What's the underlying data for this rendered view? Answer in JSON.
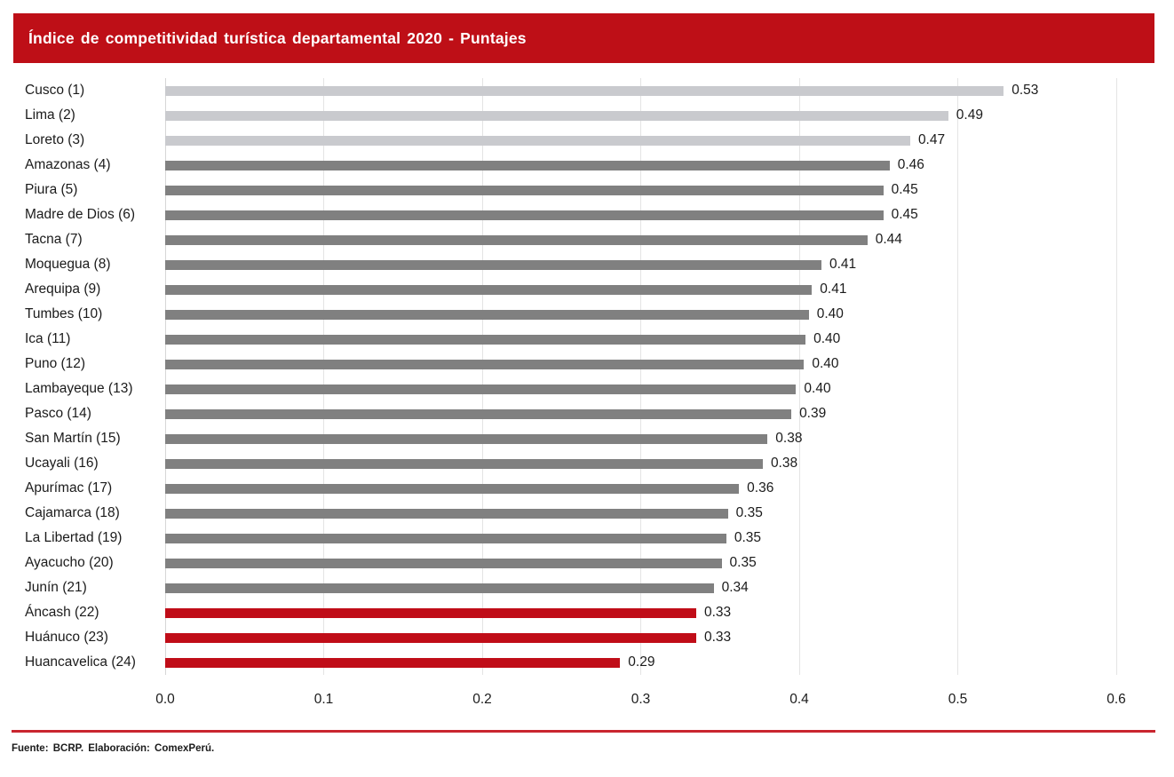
{
  "title": "Índice de competitividad turística departamental 2020 - Puntajes",
  "footer": {
    "source": "Fuente: BCRP. Elaboración: ComexPerú."
  },
  "colors": {
    "banner": "#be0f17",
    "bar_light": "#c9cace",
    "bar_dark": "#808080",
    "bar_red": "#c00d18",
    "separator": "#c9262f",
    "gridline": "#e4e4e4",
    "axisline": "#d6d6d6"
  },
  "chart_data": {
    "type": "bar",
    "orientation": "horizontal",
    "title": "Índice de competitividad turística departamental 2020 - Puntajes",
    "xlabel": "",
    "ylabel": "",
    "xlim": [
      0.0,
      0.6
    ],
    "grid": "vertical",
    "legend": "none",
    "categories": [
      "Cusco (1)",
      "Lima (2)",
      "Loreto (3)",
      "Amazonas (4)",
      "Piura (5)",
      "Madre de Dios (6)",
      "Tacna (7)",
      "Moquegua (8)",
      "Arequipa (9)",
      "Tumbes (10)",
      "Ica (11)",
      "Puno (12)",
      "Lambayeque (13)",
      "Pasco (14)",
      "San Martín (15)",
      "Ucayali (16)",
      "Apurímac (17)",
      "Cajamarca (18)",
      "La Libertad (19)",
      "Ayacucho (20)",
      "Junín (21)",
      "Áncash (22)",
      "Huánuco (23)",
      "Huancavelica (24)"
    ],
    "values": [
      0.53,
      0.49,
      0.47,
      0.46,
      0.45,
      0.45,
      0.44,
      0.41,
      0.41,
      0.4,
      0.4,
      0.4,
      0.4,
      0.39,
      0.38,
      0.38,
      0.36,
      0.35,
      0.35,
      0.35,
      0.34,
      0.33,
      0.33,
      0.29
    ],
    "value_labels": [
      "0.53",
      "0.49",
      "0.47",
      "0.46",
      "0.45",
      "0.45",
      "0.44",
      "0.41",
      "0.41",
      "0.40",
      "0.40",
      "0.40",
      "0.40",
      "0.39",
      "0.38",
      "0.38",
      "0.36",
      "0.35",
      "0.35",
      "0.35",
      "0.34",
      "0.33",
      "0.33",
      "0.29"
    ],
    "values_precise": [
      0.529,
      0.494,
      0.47,
      0.457,
      0.453,
      0.453,
      0.443,
      0.414,
      0.408,
      0.406,
      0.404,
      0.403,
      0.398,
      0.395,
      0.38,
      0.377,
      0.362,
      0.355,
      0.354,
      0.351,
      0.346,
      0.335,
      0.335,
      0.287
    ],
    "bar_groups": [
      "light",
      "light",
      "light",
      "dark",
      "dark",
      "dark",
      "dark",
      "dark",
      "dark",
      "dark",
      "dark",
      "dark",
      "dark",
      "dark",
      "dark",
      "dark",
      "dark",
      "dark",
      "dark",
      "dark",
      "dark",
      "red",
      "red",
      "red"
    ],
    "xticks": [
      "0.0",
      "0.1",
      "0.2",
      "0.3",
      "0.4",
      "0.5",
      "0.6"
    ]
  }
}
